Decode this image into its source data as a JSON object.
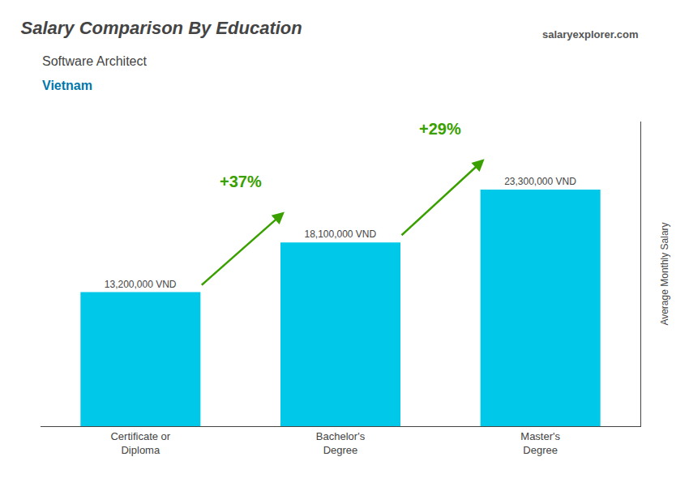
{
  "chart_data": {
    "type": "bar",
    "title": "Salary Comparison By Education",
    "subtitle": "Software Architect",
    "categories": [
      "Certificate or\nDiploma",
      "Bachelor's\nDegree",
      "Master's\nDegree"
    ],
    "values": [
      13200000,
      18100000,
      23300000
    ],
    "value_labels": [
      "13,200,000 VND",
      "18,100,000 VND",
      "23,300,000 VND"
    ],
    "data_labels": true,
    "color": "#00c8e8",
    "ylabel": "Average Monthly Salary",
    "ylim": [
      0,
      30000000
    ],
    "yticks": [],
    "tick_labels": "x",
    "grid": false,
    "annotations": [
      {
        "text": "Vietnam"
      },
      {
        "text": "salaryexplorer.com"
      },
      {
        "text": "+37%",
        "from": "Certificate or\nDiploma",
        "to": "Bachelor's\nDegree"
      },
      {
        "text": "+29%",
        "from": "Bachelor's\nDegree",
        "to": "Master's\nDegree"
      }
    ]
  }
}
